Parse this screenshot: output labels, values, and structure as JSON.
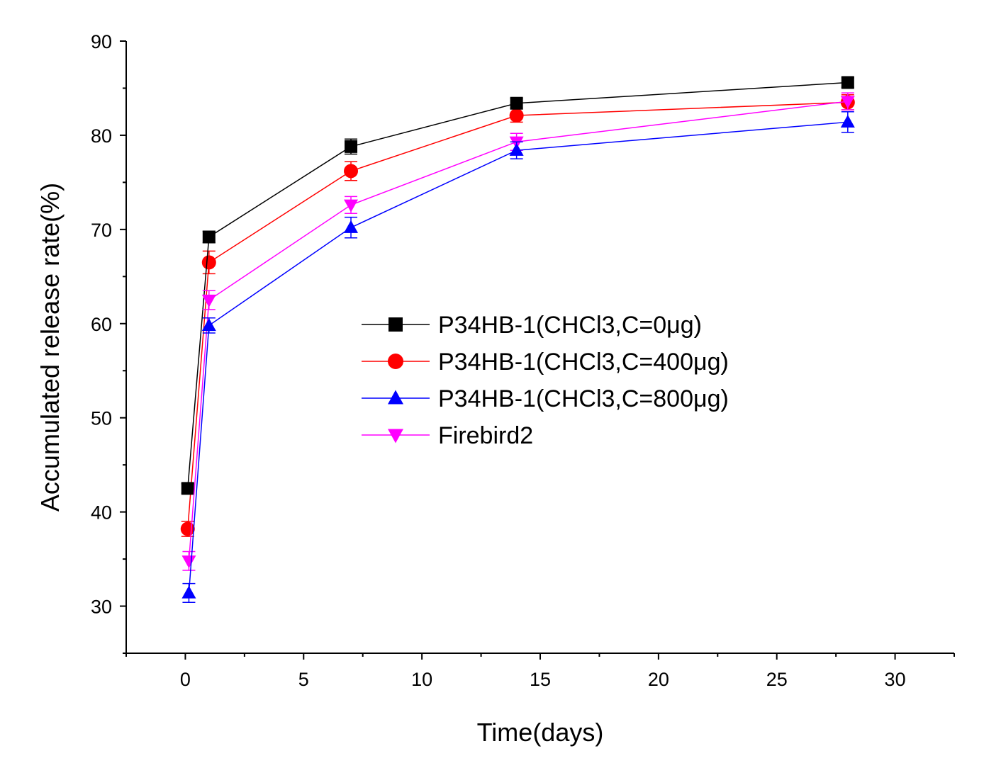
{
  "chart_data": {
    "type": "line",
    "title": "",
    "xlabel": "Time(days)",
    "ylabel": "Accumulated release rate(%)",
    "xlim": [
      -2.5,
      32.5
    ],
    "ylim": [
      25,
      90
    ],
    "xticks": [
      0,
      5,
      10,
      15,
      20,
      25,
      30
    ],
    "yticks": [
      30,
      40,
      50,
      60,
      70,
      80,
      90
    ],
    "x_tick_labels": [
      "0",
      "5",
      "10",
      "15",
      "20",
      "25",
      "30"
    ],
    "y_tick_labels": [
      "30",
      "40",
      "50",
      "60",
      "70",
      "80",
      "90"
    ],
    "legend_position": "center",
    "grid": false,
    "series": [
      {
        "name": "P34HB-1(CHCl3,C=0μg)",
        "color": "#000000",
        "marker": "square",
        "x": [
          0.1,
          1,
          7,
          14,
          28
        ],
        "y": [
          42.5,
          69.2,
          78.8,
          83.4,
          85.6
        ],
        "err": [
          0.5,
          0.6,
          0.8,
          0.5,
          0.5
        ]
      },
      {
        "name": "P34HB-1(CHCl3,C=400μg)",
        "color": "#ff0000",
        "marker": "circle",
        "x": [
          0.1,
          1,
          7,
          14,
          28
        ],
        "y": [
          38.2,
          66.5,
          76.2,
          82.1,
          83.5
        ],
        "err": [
          0.8,
          1.2,
          1.0,
          0.7,
          0.8
        ]
      },
      {
        "name": "P34HB-1(CHCl3,C=800μg)",
        "color": "#0000ff",
        "marker": "triangle-up",
        "x": [
          0.15,
          1,
          7,
          14,
          28
        ],
        "y": [
          31.4,
          59.8,
          70.2,
          78.4,
          81.4
        ],
        "err": [
          1.0,
          0.8,
          1.1,
          0.9,
          1.1
        ]
      },
      {
        "name": "Firebird2",
        "color": "#ff00ff",
        "marker": "triangle-down",
        "x": [
          0.15,
          1,
          7,
          14,
          28
        ],
        "y": [
          34.8,
          62.5,
          72.6,
          79.3,
          83.6
        ],
        "err": [
          1.0,
          1.0,
          0.9,
          0.9,
          0.9
        ]
      }
    ]
  }
}
